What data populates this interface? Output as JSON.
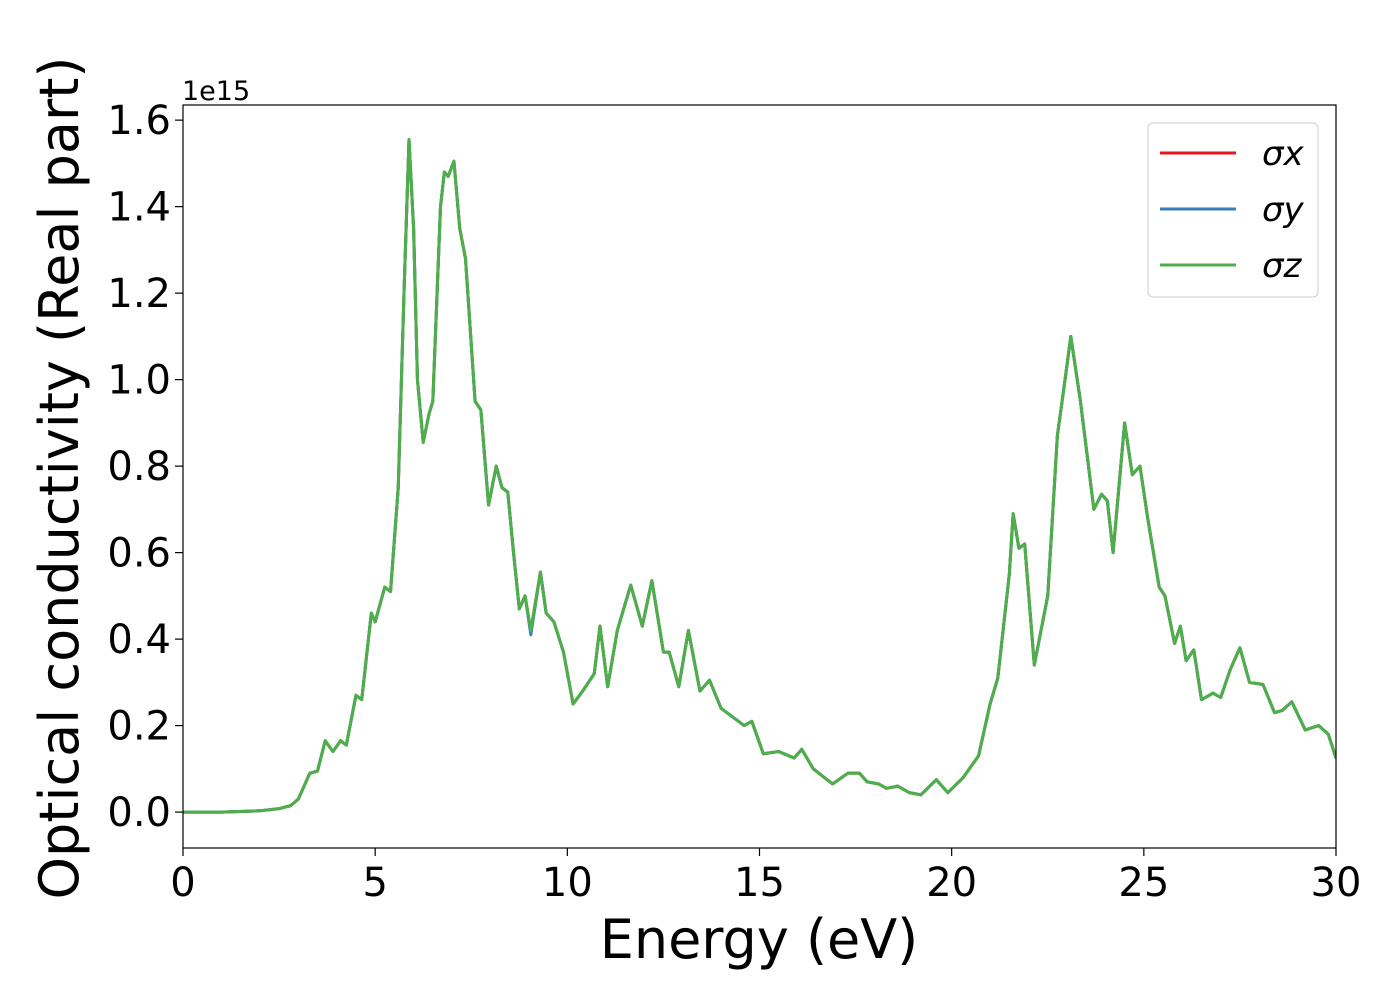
{
  "chart_data": {
    "type": "line",
    "xlabel": "Energy (eV)",
    "ylabel": "Optical conductivity (Real part)",
    "y_offset_label": "1e15",
    "xlim": [
      0,
      30
    ],
    "ylim": [
      -0.083,
      1.635
    ],
    "xticks": [
      0,
      5,
      10,
      15,
      20,
      25,
      30
    ],
    "yticks": [
      {
        "value": 0,
        "label": "0.0"
      },
      0.2,
      0.4,
      0.6,
      0.8,
      {
        "value": 1,
        "label": "1.0"
      },
      1.2,
      1.4,
      1.6
    ],
    "legend": "upper right",
    "x": [
      0,
      1,
      2,
      2.5,
      2.8,
      3.0,
      3.3,
      3.5,
      3.7,
      3.9,
      4.1,
      4.25,
      4.5,
      4.65,
      4.9,
      5.0,
      5.25,
      5.4,
      5.6,
      5.75,
      5.88,
      6.0,
      6.1,
      6.25,
      6.4,
      6.5,
      6.7,
      6.8,
      6.9,
      7.05,
      7.2,
      7.35,
      7.6,
      7.75,
      7.95,
      8.15,
      8.3,
      8.45,
      8.6,
      8.75,
      8.9,
      9.05,
      9.3,
      9.45,
      9.65,
      9.9,
      10.15,
      10.4,
      10.55,
      10.7,
      10.85,
      11.05,
      11.3,
      11.65,
      11.95,
      12.2,
      12.5,
      12.65,
      12.9,
      13.15,
      13.45,
      13.7,
      14.0,
      14.3,
      14.6,
      14.8,
      15.1,
      15.5,
      15.9,
      16.1,
      16.4,
      16.9,
      17.3,
      17.6,
      17.8,
      18.1,
      18.3,
      18.6,
      18.9,
      19.2,
      19.6,
      19.9,
      20.3,
      20.7,
      21.0,
      21.2,
      21.5,
      21.6,
      21.75,
      21.9,
      22.15,
      22.5,
      22.75,
      22.95,
      23.1,
      23.35,
      23.7,
      23.9,
      24.05,
      24.2,
      24.5,
      24.7,
      24.9,
      25.1,
      25.4,
      25.55,
      25.8,
      25.95,
      26.1,
      26.3,
      26.5,
      26.8,
      27.0,
      27.25,
      27.5,
      27.75,
      28.1,
      28.4,
      28.6,
      28.85,
      29.2,
      29.55,
      29.8,
      30
    ],
    "series": [
      {
        "name": "σx",
        "color": "#e41a1c",
        "values": [
          0,
          0,
          0.003,
          0.008,
          0.015,
          0.03,
          0.09,
          0.095,
          0.165,
          0.14,
          0.165,
          0.155,
          0.27,
          0.26,
          0.46,
          0.44,
          0.52,
          0.51,
          0.75,
          1.2,
          1.555,
          1.35,
          1.0,
          0.855,
          0.92,
          0.95,
          1.4,
          1.48,
          1.47,
          1.505,
          1.35,
          1.28,
          0.95,
          0.93,
          0.71,
          0.8,
          0.75,
          0.74,
          0.6,
          0.47,
          0.5,
          0.42,
          0.555,
          0.46,
          0.44,
          0.37,
          0.25,
          0.28,
          0.3,
          0.32,
          0.43,
          0.29,
          0.42,
          0.525,
          0.43,
          0.535,
          0.37,
          0.37,
          0.29,
          0.42,
          0.28,
          0.305,
          0.24,
          0.22,
          0.2,
          0.21,
          0.135,
          0.14,
          0.125,
          0.145,
          0.1,
          0.065,
          0.09,
          0.09,
          0.07,
          0.065,
          0.055,
          0.06,
          0.045,
          0.04,
          0.075,
          0.045,
          0.08,
          0.13,
          0.25,
          0.31,
          0.55,
          0.69,
          0.61,
          0.62,
          0.34,
          0.5,
          0.87,
          1.0,
          1.1,
          0.95,
          0.7,
          0.735,
          0.72,
          0.6,
          0.9,
          0.78,
          0.8,
          0.68,
          0.52,
          0.5,
          0.39,
          0.43,
          0.35,
          0.375,
          0.26,
          0.275,
          0.265,
          0.33,
          0.38,
          0.3,
          0.295,
          0.23,
          0.235,
          0.255,
          0.19,
          0.2,
          0.18,
          0.125
        ]
      },
      {
        "name": "σy",
        "color": "#377eb8",
        "values": [
          0,
          0,
          0.003,
          0.008,
          0.015,
          0.03,
          0.09,
          0.095,
          0.165,
          0.14,
          0.165,
          0.155,
          0.27,
          0.26,
          0.46,
          0.44,
          0.52,
          0.51,
          0.75,
          1.2,
          1.555,
          1.35,
          1.0,
          0.855,
          0.92,
          0.95,
          1.4,
          1.48,
          1.47,
          1.505,
          1.35,
          1.28,
          0.95,
          0.93,
          0.71,
          0.8,
          0.75,
          0.74,
          0.6,
          0.47,
          0.5,
          0.41,
          0.555,
          0.46,
          0.44,
          0.37,
          0.25,
          0.28,
          0.3,
          0.32,
          0.43,
          0.29,
          0.42,
          0.525,
          0.43,
          0.535,
          0.37,
          0.37,
          0.29,
          0.42,
          0.28,
          0.305,
          0.24,
          0.22,
          0.2,
          0.21,
          0.135,
          0.14,
          0.125,
          0.145,
          0.1,
          0.065,
          0.09,
          0.09,
          0.07,
          0.065,
          0.055,
          0.06,
          0.045,
          0.04,
          0.075,
          0.045,
          0.08,
          0.13,
          0.25,
          0.31,
          0.55,
          0.69,
          0.61,
          0.62,
          0.34,
          0.5,
          0.87,
          1.0,
          1.1,
          0.95,
          0.7,
          0.735,
          0.72,
          0.6,
          0.9,
          0.78,
          0.8,
          0.68,
          0.52,
          0.5,
          0.39,
          0.43,
          0.35,
          0.375,
          0.26,
          0.275,
          0.265,
          0.33,
          0.38,
          0.3,
          0.295,
          0.23,
          0.235,
          0.255,
          0.19,
          0.2,
          0.18,
          0.125
        ]
      },
      {
        "name": "σz",
        "color": "#4daf4a",
        "values": [
          0,
          0,
          0.003,
          0.008,
          0.015,
          0.03,
          0.09,
          0.095,
          0.165,
          0.14,
          0.165,
          0.155,
          0.27,
          0.26,
          0.46,
          0.44,
          0.52,
          0.51,
          0.75,
          1.2,
          1.555,
          1.35,
          1.0,
          0.855,
          0.92,
          0.95,
          1.4,
          1.48,
          1.47,
          1.505,
          1.35,
          1.28,
          0.95,
          0.93,
          0.71,
          0.8,
          0.75,
          0.74,
          0.6,
          0.47,
          0.5,
          0.42,
          0.555,
          0.46,
          0.44,
          0.37,
          0.25,
          0.28,
          0.3,
          0.32,
          0.43,
          0.29,
          0.42,
          0.525,
          0.43,
          0.535,
          0.37,
          0.37,
          0.29,
          0.42,
          0.28,
          0.305,
          0.24,
          0.22,
          0.2,
          0.21,
          0.135,
          0.14,
          0.125,
          0.145,
          0.1,
          0.065,
          0.09,
          0.09,
          0.07,
          0.065,
          0.055,
          0.06,
          0.045,
          0.04,
          0.075,
          0.045,
          0.08,
          0.13,
          0.25,
          0.31,
          0.55,
          0.69,
          0.61,
          0.62,
          0.34,
          0.5,
          0.87,
          1.0,
          1.1,
          0.95,
          0.7,
          0.735,
          0.72,
          0.6,
          0.9,
          0.78,
          0.8,
          0.68,
          0.52,
          0.5,
          0.39,
          0.43,
          0.35,
          0.375,
          0.26,
          0.275,
          0.265,
          0.33,
          0.38,
          0.3,
          0.295,
          0.23,
          0.235,
          0.255,
          0.19,
          0.2,
          0.18,
          0.125
        ]
      }
    ]
  }
}
